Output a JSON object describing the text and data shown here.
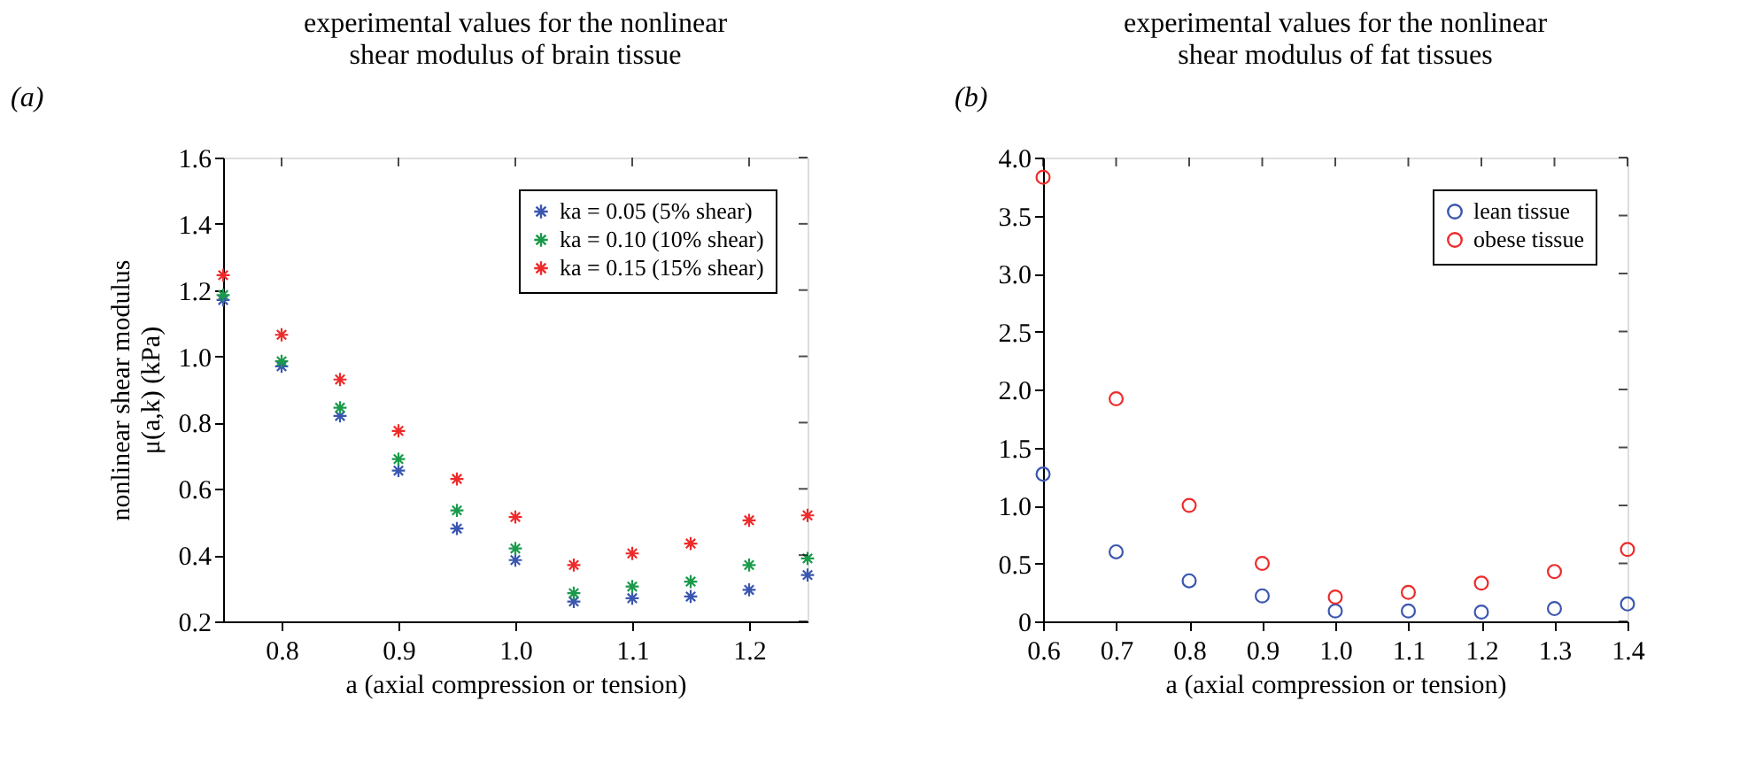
{
  "chart_data": [
    {
      "type": "scatter",
      "title": [
        "experimental values for the nonlinear",
        "shear modulus of  brain tissue"
      ],
      "xlabel": "a (axial compression or tension)",
      "ylabel": [
        "nonlinear shear modulus",
        "μ(a,k) (kPa)"
      ],
      "annotations": [
        "(a)"
      ],
      "marker": "cross",
      "legend": "top right",
      "grid": false,
      "x": [
        0.75,
        0.8,
        0.85,
        0.9,
        0.95,
        1.0,
        1.05,
        1.1,
        1.15,
        1.2,
        1.25
      ],
      "xlim": [
        0.75,
        1.25
      ],
      "xticks": [
        0.8,
        0.9,
        {
          "value": 1,
          "label": "1.0"
        },
        1.1,
        1.2
      ],
      "ylim": [
        0.2,
        1.6
      ],
      "yticks": [
        0.2,
        0.4,
        0.6,
        0.8,
        {
          "value": 1,
          "label": "1.0"
        },
        1.2,
        1.4,
        1.6
      ],
      "series": [
        {
          "name": "ka = 0.05 (5% shear)",
          "color": "#3a56b0",
          "values": [
            1.17,
            0.97,
            0.82,
            0.655,
            0.48,
            0.385,
            0.26,
            0.27,
            0.275,
            0.295,
            0.34
          ]
        },
        {
          "name": "ka = 0.10 (10% shear)",
          "color": "#1a9a4a",
          "values": [
            1.185,
            0.985,
            0.845,
            0.69,
            0.535,
            0.42,
            0.285,
            0.305,
            0.32,
            0.37,
            0.39
          ]
        },
        {
          "name": "ka = 0.15 (15% shear)",
          "color": "#ee2a2a",
          "values": [
            1.245,
            1.065,
            0.93,
            0.775,
            0.63,
            0.515,
            0.37,
            0.405,
            0.435,
            0.505,
            0.52
          ]
        }
      ]
    },
    {
      "type": "scatter",
      "title": [
        "experimental values for the nonlinear",
        "shear modulus of fat tissues"
      ],
      "xlabel": "a (axial compression or tension)",
      "annotations": [
        "(b)"
      ],
      "marker": "circle",
      "legend": "top right",
      "grid": false,
      "x": [
        0.6,
        0.7,
        0.8,
        0.9,
        1.0,
        1.1,
        1.2,
        1.3,
        1.4
      ],
      "xlim": [
        0.6,
        1.4
      ],
      "xticks": [
        0.6,
        0.7,
        0.8,
        0.9,
        {
          "value": 1,
          "label": "1.0"
        },
        1.1,
        1.2,
        1.3,
        1.4
      ],
      "ylim": [
        0,
        4
      ],
      "yticks": [
        0,
        0.5,
        {
          "value": 1,
          "label": "1.0"
        },
        1.5,
        {
          "value": 2,
          "label": "2.0"
        },
        2.5,
        {
          "value": 3,
          "label": "3.0"
        },
        3.5,
        {
          "value": 4,
          "label": "4.0"
        }
      ],
      "series": [
        {
          "name": "lean tissue",
          "color": "#3a56b0",
          "values": [
            1.27,
            0.6,
            0.35,
            0.22,
            0.09,
            0.09,
            0.08,
            0.11,
            0.15
          ]
        },
        {
          "name": "obese tissue",
          "color": "#ee2a2a",
          "values": [
            3.83,
            1.92,
            1.0,
            0.5,
            0.21,
            0.25,
            0.33,
            0.43,
            0.62
          ]
        }
      ]
    }
  ]
}
